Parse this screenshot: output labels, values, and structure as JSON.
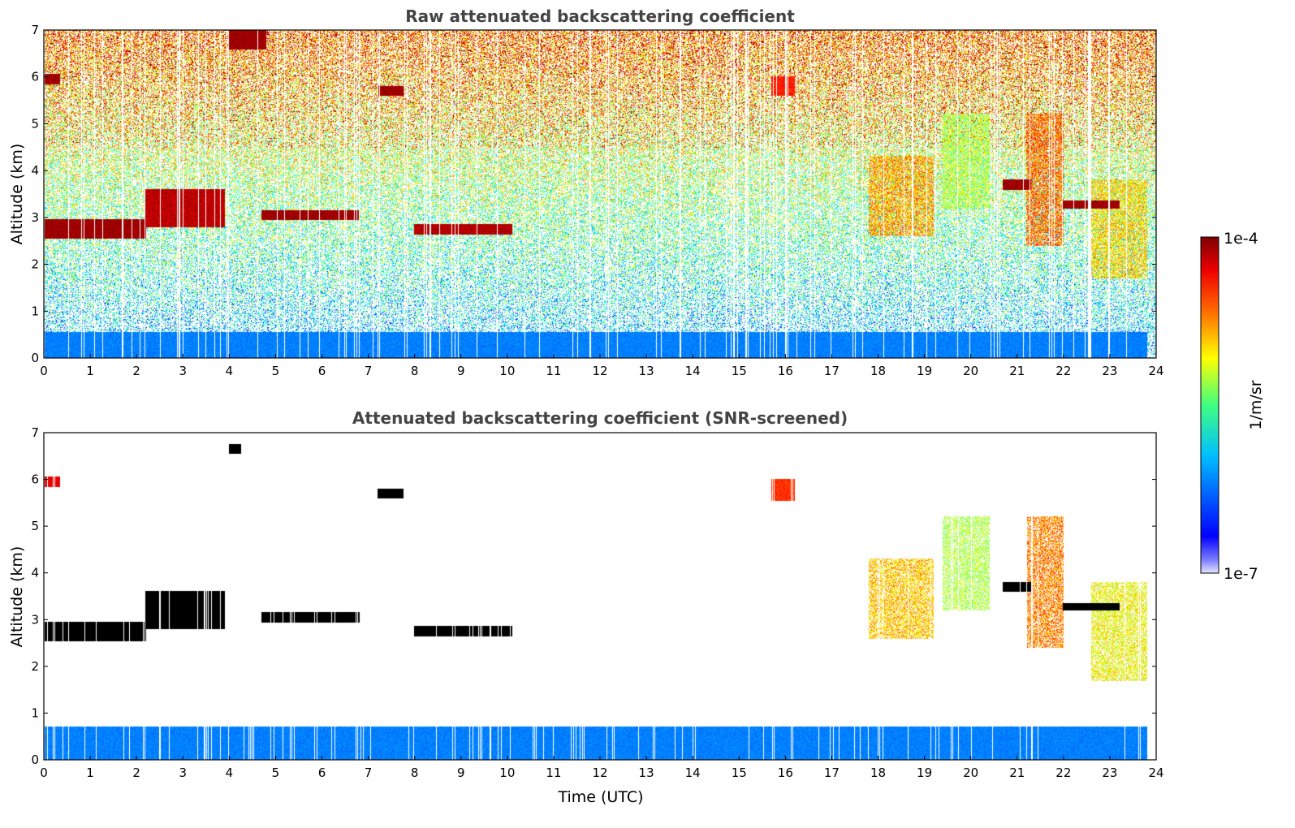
{
  "chart_data": [
    {
      "type": "heatmap",
      "title": "Raw attenuated backscattering coefficient",
      "xlabel": "",
      "ylabel": "Altitude (km)",
      "xlim": [
        0,
        24
      ],
      "ylim": [
        0,
        7
      ],
      "xticks": [
        "0",
        "1",
        "2",
        "3",
        "4",
        "5",
        "6",
        "7",
        "8",
        "9",
        "10",
        "11",
        "12",
        "13",
        "14",
        "15",
        "16",
        "17",
        "18",
        "19",
        "20",
        "21",
        "22",
        "23",
        "24"
      ],
      "yticks": [
        "0",
        "1",
        "2",
        "3",
        "4",
        "5",
        "6",
        "7"
      ],
      "noise_field": true,
      "features": [
        {
          "name": "boundary-layer",
          "t0": 0,
          "t1": 23.8,
          "z0": 0,
          "z1": 0.55,
          "level": 0.25,
          "spread": 0.03
        },
        {
          "name": "cloud-layer-a",
          "t0": 0,
          "t1": 2.2,
          "z0": 2.55,
          "z1": 2.95,
          "level": 0.97,
          "spread": 0.03
        },
        {
          "name": "cloud-layer-b",
          "t0": 2.2,
          "t1": 3.9,
          "z0": 2.8,
          "z1": 3.6,
          "level": 0.94,
          "spread": 0.05
        },
        {
          "name": "cloud-layer-c",
          "t0": 4.7,
          "t1": 6.8,
          "z0": 2.95,
          "z1": 3.15,
          "level": 0.97,
          "spread": 0.03
        },
        {
          "name": "cloud-layer-d",
          "t0": 8.0,
          "t1": 10.1,
          "z0": 2.65,
          "z1": 2.85,
          "level": 0.95,
          "spread": 0.04
        },
        {
          "name": "high-cloud-a",
          "t0": 4.0,
          "t1": 4.8,
          "z0": 6.6,
          "z1": 7.0,
          "level": 0.97,
          "spread": 0.03
        },
        {
          "name": "high-cloud-b",
          "t0": 0,
          "t1": 0.35,
          "z0": 5.85,
          "z1": 6.05,
          "level": 0.97,
          "spread": 0.03
        },
        {
          "name": "high-cloud-c",
          "t0": 7.2,
          "t1": 7.75,
          "z0": 5.6,
          "z1": 5.8,
          "level": 0.97,
          "spread": 0.03
        },
        {
          "name": "high-cloud-d",
          "t0": 15.7,
          "t1": 16.2,
          "z0": 5.6,
          "z1": 6.0,
          "level": 0.85,
          "spread": 0.05
        },
        {
          "name": "cirrus-fall-a",
          "t0": 17.8,
          "t1": 19.2,
          "z0": 2.6,
          "z1": 4.3,
          "level": 0.72,
          "spread": 0.12
        },
        {
          "name": "cirrus-fall-b",
          "t0": 19.4,
          "t1": 20.4,
          "z0": 3.2,
          "z1": 5.2,
          "level": 0.55,
          "spread": 0.1
        },
        {
          "name": "cirrus-fall-c",
          "t0": 21.2,
          "t1": 22.0,
          "z0": 2.4,
          "z1": 5.2,
          "level": 0.78,
          "spread": 0.1
        },
        {
          "name": "cirrus-fall-d",
          "t0": 22.6,
          "t1": 23.8,
          "z0": 1.7,
          "z1": 3.8,
          "level": 0.66,
          "spread": 0.12
        },
        {
          "name": "cloud-layer-e",
          "t0": 20.7,
          "t1": 21.3,
          "z0": 3.6,
          "z1": 3.8,
          "level": 0.97,
          "spread": 0.03
        },
        {
          "name": "cloud-layer-f",
          "t0": 22.0,
          "t1": 23.2,
          "z0": 3.2,
          "z1": 3.35,
          "level": 0.97,
          "spread": 0.03
        }
      ]
    },
    {
      "type": "heatmap",
      "title": "Attenuated backscattering coefficient (SNR-screened)",
      "xlabel": "Time (UTC)",
      "ylabel": "Altitude (km)",
      "xlim": [
        0,
        24
      ],
      "ylim": [
        0,
        7
      ],
      "xticks": [
        "0",
        "1",
        "2",
        "3",
        "4",
        "5",
        "6",
        "7",
        "8",
        "9",
        "10",
        "11",
        "12",
        "13",
        "14",
        "15",
        "16",
        "17",
        "18",
        "19",
        "20",
        "21",
        "22",
        "23",
        "24"
      ],
      "yticks": [
        "0",
        "1",
        "2",
        "3",
        "4",
        "5",
        "6",
        "7"
      ],
      "noise_field": false,
      "features": [
        {
          "name": "boundary-layer",
          "t0": 0,
          "t1": 23.8,
          "z0": 0,
          "z1": 0.7,
          "level": 0.25,
          "spread": 0.03
        },
        {
          "name": "cloud-layer-a",
          "t0": 0,
          "t1": 2.2,
          "z0": 2.55,
          "z1": 2.95,
          "level": 0.99,
          "spread": 0.01
        },
        {
          "name": "cloud-layer-b",
          "t0": 2.2,
          "t1": 3.9,
          "z0": 2.8,
          "z1": 3.6,
          "level": 0.99,
          "spread": 0.01
        },
        {
          "name": "cloud-layer-c",
          "t0": 4.7,
          "t1": 6.8,
          "z0": 2.95,
          "z1": 3.15,
          "level": 0.99,
          "spread": 0.01
        },
        {
          "name": "cloud-layer-d",
          "t0": 8.0,
          "t1": 10.1,
          "z0": 2.65,
          "z1": 2.85,
          "level": 0.99,
          "spread": 0.01
        },
        {
          "name": "high-cloud-a",
          "t0": 4.0,
          "t1": 4.25,
          "z0": 6.55,
          "z1": 6.75,
          "level": 0.99,
          "spread": 0.01
        },
        {
          "name": "high-cloud-b",
          "t0": 0,
          "t1": 0.35,
          "z0": 5.85,
          "z1": 6.05,
          "level": 0.9,
          "spread": 0.04
        },
        {
          "name": "high-cloud-c",
          "t0": 7.2,
          "t1": 7.75,
          "z0": 5.6,
          "z1": 5.8,
          "level": 0.99,
          "spread": 0.01
        },
        {
          "name": "high-cloud-d",
          "t0": 15.7,
          "t1": 16.2,
          "z0": 5.55,
          "z1": 6.0,
          "level": 0.83,
          "spread": 0.04
        },
        {
          "name": "cirrus-fall-a",
          "t0": 17.8,
          "t1": 19.2,
          "z0": 2.6,
          "z1": 4.3,
          "level": 0.68,
          "spread": 0.1
        },
        {
          "name": "cirrus-fall-b",
          "t0": 19.4,
          "t1": 20.4,
          "z0": 3.2,
          "z1": 5.2,
          "level": 0.55,
          "spread": 0.08
        },
        {
          "name": "cirrus-fall-c",
          "t0": 21.2,
          "t1": 22.0,
          "z0": 2.4,
          "z1": 5.2,
          "level": 0.75,
          "spread": 0.1
        },
        {
          "name": "cirrus-fall-d",
          "t0": 22.6,
          "t1": 23.8,
          "z0": 1.7,
          "z1": 3.8,
          "level": 0.62,
          "spread": 0.1
        },
        {
          "name": "cloud-layer-e",
          "t0": 20.7,
          "t1": 21.3,
          "z0": 3.6,
          "z1": 3.8,
          "level": 0.99,
          "spread": 0.01
        },
        {
          "name": "cloud-layer-f",
          "t0": 22.0,
          "t1": 23.2,
          "z0": 3.2,
          "z1": 3.35,
          "level": 0.99,
          "spread": 0.01
        }
      ]
    }
  ],
  "colorbar": {
    "top_label": "1e-4",
    "bottom_label": "1e-7",
    "unit_label": "1/m/sr",
    "colormap": "jet"
  }
}
